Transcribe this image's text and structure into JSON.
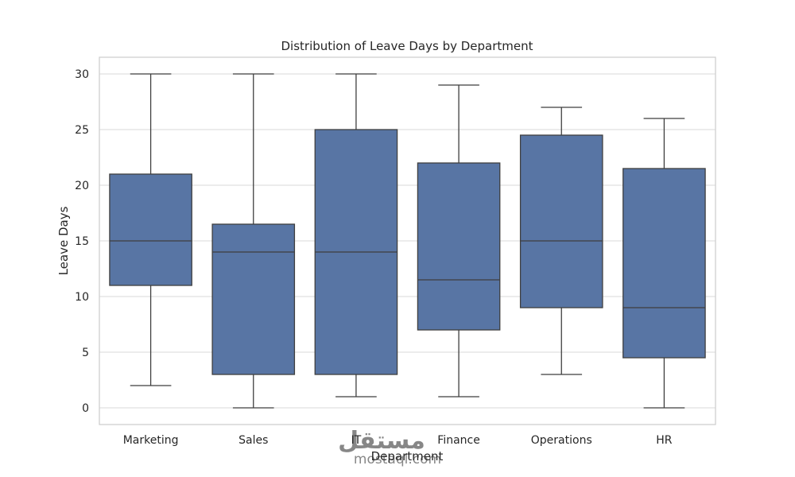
{
  "chart_data": {
    "type": "box",
    "title": "Distribution of Leave Days by Department",
    "xlabel": "Department",
    "ylabel": "Leave Days",
    "ylim": [
      -1.5,
      31.5
    ],
    "yticks": [
      0,
      5,
      10,
      15,
      20,
      25,
      30
    ],
    "grid": true,
    "box_color": "#5875a4",
    "line_color": "#3f3f3f",
    "categories": [
      "Marketing",
      "Sales",
      "IT",
      "Finance",
      "Operations",
      "HR"
    ],
    "series": [
      {
        "category": "Marketing",
        "min": 2,
        "q1": 11,
        "median": 15,
        "q3": 21,
        "max": 30
      },
      {
        "category": "Sales",
        "min": 0,
        "q1": 3,
        "median": 14,
        "q3": 16.5,
        "max": 30
      },
      {
        "category": "IT",
        "min": 1,
        "q1": 3,
        "median": 14,
        "q3": 25,
        "max": 30
      },
      {
        "category": "Finance",
        "min": 1,
        "q1": 7,
        "median": 11.5,
        "q3": 22,
        "max": 29
      },
      {
        "category": "Operations",
        "min": 3,
        "q1": 9,
        "median": 15,
        "q3": 24.5,
        "max": 27
      },
      {
        "category": "HR",
        "min": 0,
        "q1": 4.5,
        "median": 9,
        "q3": 21.5,
        "max": 26
      }
    ]
  },
  "watermark": {
    "text_arabic": "مستقل",
    "text_latin": "mostaql.com"
  }
}
